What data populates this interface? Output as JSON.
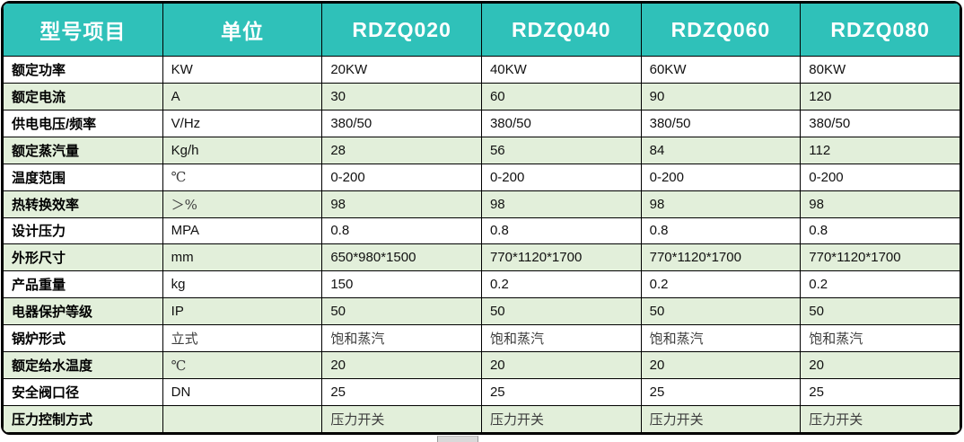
{
  "colors": {
    "header_bg": "#2FC1B9",
    "header_text": "#ffffff",
    "row_alt_bg": "#E2EFDA",
    "row_bg": "#ffffff",
    "border": "#000000"
  },
  "table": {
    "columns": [
      "型号项目",
      "单位",
      "RDZQ020",
      "RDZQ040",
      "RDZQ060",
      "RDZQ080"
    ],
    "rows": [
      {
        "label": "额定功率",
        "unit": "KW",
        "values": [
          "20KW",
          "40KW",
          "60KW",
          "80KW"
        ]
      },
      {
        "label": "额定电流",
        "unit": "A",
        "values": [
          "30",
          "60",
          "90",
          "120"
        ]
      },
      {
        "label": "供电电压/频率",
        "unit": "V/Hz",
        "values": [
          "380/50",
          "380/50",
          "380/50",
          "380/50"
        ]
      },
      {
        "label": "额定蒸汽量",
        "unit": "Kg/h",
        "values": [
          "28",
          "56",
          "84",
          "112"
        ]
      },
      {
        "label": "温度范围",
        "unit": "℃",
        "values": [
          "0-200",
          "0-200",
          "0-200",
          "0-200"
        ]
      },
      {
        "label": "热转换效率",
        "unit": "＞%",
        "values": [
          "98",
          "98",
          "98",
          "98"
        ]
      },
      {
        "label": "设计压力",
        "unit": "MPA",
        "values": [
          "0.8",
          "0.8",
          "0.8",
          "0.8"
        ]
      },
      {
        "label": "外形尺寸",
        "unit": "mm",
        "values": [
          "650*980*1500",
          "770*1120*1700",
          "770*1120*1700",
          "770*1120*1700"
        ]
      },
      {
        "label": "产品重量",
        "unit": "kg",
        "values": [
          "150",
          "0.2",
          "0.2",
          "0.2"
        ]
      },
      {
        "label": "电器保护等级",
        "unit": "IP",
        "values": [
          "50",
          "50",
          "50",
          "50"
        ]
      },
      {
        "label": "锅炉形式",
        "unit": "立式",
        "values": [
          "饱和蒸汽",
          "饱和蒸汽",
          "饱和蒸汽",
          "饱和蒸汽"
        ]
      },
      {
        "label": "额定给水温度",
        "unit": "℃",
        "values": [
          "20",
          "20",
          "20",
          "20"
        ]
      },
      {
        "label": "安全阀口径",
        "unit": "DN",
        "values": [
          "25",
          "25",
          "25",
          "25"
        ]
      },
      {
        "label": "压力控制方式",
        "unit": "",
        "values": [
          "压力开关",
          "压力开关",
          "压力开关",
          "压力开关"
        ]
      }
    ]
  }
}
